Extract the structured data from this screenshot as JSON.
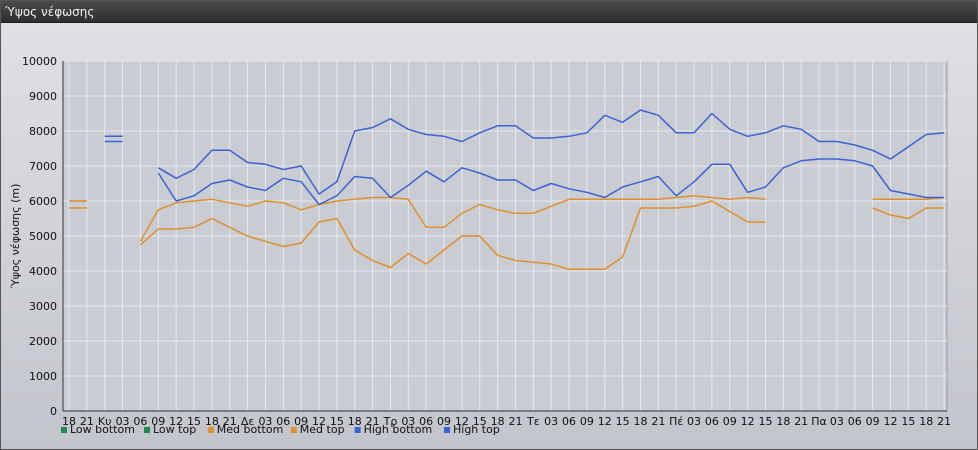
{
  "window": {
    "title": "Ύψος νέφωσης"
  },
  "chart_data": {
    "type": "line",
    "title": "",
    "xlabel": "",
    "ylabel": "Ύψος νέφωσης (m)",
    "ylim": [
      0,
      10000
    ],
    "yticks": [
      0,
      1000,
      2000,
      3000,
      4000,
      5000,
      6000,
      7000,
      8000,
      9000,
      10000
    ],
    "grid": true,
    "legend": "bottom-left",
    "categories": [
      "18",
      "21",
      "Κυ",
      "03",
      "06",
      "09",
      "12",
      "15",
      "18",
      "21",
      "Δε",
      "03",
      "06",
      "09",
      "12",
      "15",
      "18",
      "21",
      "Τρ",
      "03",
      "06",
      "09",
      "12",
      "15",
      "18",
      "21",
      "Τε",
      "03",
      "06",
      "09",
      "12",
      "15",
      "18",
      "21",
      "Πέ",
      "03",
      "06",
      "09",
      "12",
      "15",
      "18",
      "21",
      "Πα",
      "03",
      "06",
      "09",
      "12",
      "15",
      "18",
      "21"
    ],
    "series": [
      {
        "name": "Low bottom",
        "color": "#1e8a50",
        "values": [
          null,
          null,
          null,
          null,
          null,
          null,
          null,
          null,
          null,
          null,
          null,
          null,
          null,
          null,
          null,
          null,
          null,
          null,
          null,
          null,
          null,
          null,
          null,
          null,
          null,
          null,
          null,
          null,
          null,
          null,
          null,
          null,
          null,
          null,
          null,
          null,
          null,
          null,
          null,
          null,
          null,
          null,
          null,
          null,
          null,
          null,
          null,
          null,
          null,
          null
        ]
      },
      {
        "name": "Low top",
        "color": "#1e8a50",
        "values": [
          null,
          null,
          null,
          null,
          null,
          null,
          null,
          null,
          null,
          null,
          null,
          null,
          null,
          null,
          null,
          null,
          null,
          null,
          null,
          null,
          null,
          null,
          null,
          null,
          null,
          null,
          null,
          null,
          null,
          null,
          null,
          null,
          null,
          null,
          null,
          null,
          null,
          null,
          null,
          null,
          null,
          null,
          null,
          null,
          null,
          null,
          null,
          null,
          null,
          null
        ]
      },
      {
        "name": "Med bottom",
        "color": "#e0902c",
        "values": [
          5800,
          5800,
          null,
          null,
          4750,
          5200,
          5200,
          5250,
          5500,
          5250,
          5000,
          4850,
          4700,
          4800,
          5400,
          5500,
          4600,
          4300,
          4100,
          4500,
          4200,
          4600,
          5000,
          5000,
          4450,
          4300,
          4250,
          4200,
          4050,
          4050,
          4050,
          4400,
          5800,
          5800,
          5800,
          5850,
          6000,
          5700,
          5400,
          5400,
          null,
          null,
          null,
          null,
          null,
          5800,
          5600,
          5500,
          5800,
          5800
        ]
      },
      {
        "name": "Med top",
        "color": "#e0902c",
        "values": [
          6000,
          6000,
          null,
          null,
          4850,
          5750,
          5950,
          6000,
          6050,
          5950,
          5850,
          6000,
          5950,
          5750,
          5900,
          6000,
          6050,
          6100,
          6100,
          6050,
          5250,
          5250,
          5650,
          5900,
          5750,
          5650,
          5650,
          5850,
          6050,
          6050,
          6050,
          6050,
          6050,
          6050,
          6100,
          6150,
          6100,
          6050,
          6100,
          6050,
          null,
          null,
          null,
          null,
          null,
          6050,
          6050,
          6050,
          6050,
          6100
        ]
      },
      {
        "name": "High bottom",
        "color": "#3a63d4",
        "values": [
          null,
          null,
          7700,
          7700,
          null,
          6800,
          6000,
          6150,
          6500,
          6600,
          6400,
          6300,
          6650,
          6550,
          5900,
          6150,
          6700,
          6650,
          6100,
          6450,
          6850,
          6550,
          6950,
          6800,
          6600,
          6600,
          6300,
          6500,
          6350,
          6250,
          6100,
          6400,
          6550,
          6700,
          6150,
          6550,
          7050,
          7050,
          6250,
          6400,
          6950,
          7150,
          7200,
          7200,
          7150,
          7000,
          6300,
          6200,
          6100,
          6100
        ]
      },
      {
        "name": "High top",
        "color": "#3a63d4",
        "values": [
          null,
          null,
          7850,
          7850,
          null,
          6950,
          6650,
          6900,
          7450,
          7450,
          7100,
          7050,
          6900,
          7000,
          6200,
          6550,
          8000,
          8100,
          8350,
          8050,
          7900,
          7850,
          7700,
          7950,
          8150,
          8150,
          7800,
          7800,
          7850,
          7950,
          8450,
          8250,
          8600,
          8450,
          7950,
          7950,
          8500,
          8050,
          7850,
          7950,
          8150,
          8050,
          7700,
          7700,
          7600,
          7450,
          7200,
          7550,
          7900,
          7950
        ]
      }
    ]
  }
}
